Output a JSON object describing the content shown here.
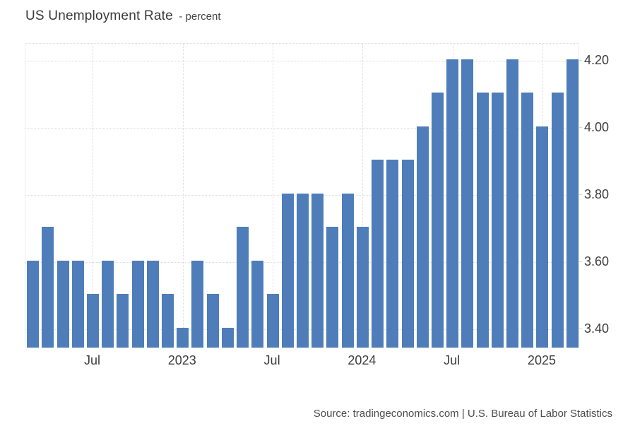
{
  "header": {
    "title": "US Unemployment Rate",
    "subtitle": "- percent"
  },
  "footer": {
    "source": "Source: tradingeconomics.com | U.S. Bureau of Labor Statistics"
  },
  "chart_data": {
    "type": "bar",
    "title": "US Unemployment Rate",
    "unit": "percent",
    "x": [
      "2022-03",
      "2022-04",
      "2022-05",
      "2022-06",
      "2022-07",
      "2022-08",
      "2022-09",
      "2022-10",
      "2022-11",
      "2022-12",
      "2023-01",
      "2023-02",
      "2023-03",
      "2023-04",
      "2023-05",
      "2023-06",
      "2023-07",
      "2023-08",
      "2023-09",
      "2023-10",
      "2023-11",
      "2023-12",
      "2024-01",
      "2024-02",
      "2024-03",
      "2024-04",
      "2024-05",
      "2024-06",
      "2024-07",
      "2024-08",
      "2024-09",
      "2024-10",
      "2024-11",
      "2024-12",
      "2025-01",
      "2025-02",
      "2025-03"
    ],
    "values": [
      3.6,
      3.7,
      3.6,
      3.6,
      3.5,
      3.6,
      3.5,
      3.6,
      3.6,
      3.5,
      3.4,
      3.6,
      3.5,
      3.4,
      3.7,
      3.6,
      3.5,
      3.8,
      3.8,
      3.8,
      3.7,
      3.8,
      3.7,
      3.9,
      3.9,
      3.9,
      4.0,
      4.1,
      4.2,
      4.2,
      4.1,
      4.1,
      4.2,
      4.1,
      4.0,
      4.1,
      4.2
    ],
    "bar_color": "#4e7db9",
    "grid": "dotted",
    "legend": "none",
    "ylim": [
      3.34,
      4.25
    ],
    "y_ticks": [
      {
        "value": 4.2,
        "label": "4.20"
      },
      {
        "value": 4.0,
        "label": "4.00"
      },
      {
        "value": 3.8,
        "label": "3.80"
      },
      {
        "value": 3.6,
        "label": "3.60"
      },
      {
        "value": 3.4,
        "label": "3.40"
      }
    ],
    "y_ticks_side": "right",
    "x_ticks": [
      {
        "index": 4,
        "label": "Jul"
      },
      {
        "index": 10,
        "label": "2023"
      },
      {
        "index": 16,
        "label": "Jul"
      },
      {
        "index": 22,
        "label": "2024"
      },
      {
        "index": 28,
        "label": "Jul"
      },
      {
        "index": 34,
        "label": "2025"
      }
    ]
  }
}
